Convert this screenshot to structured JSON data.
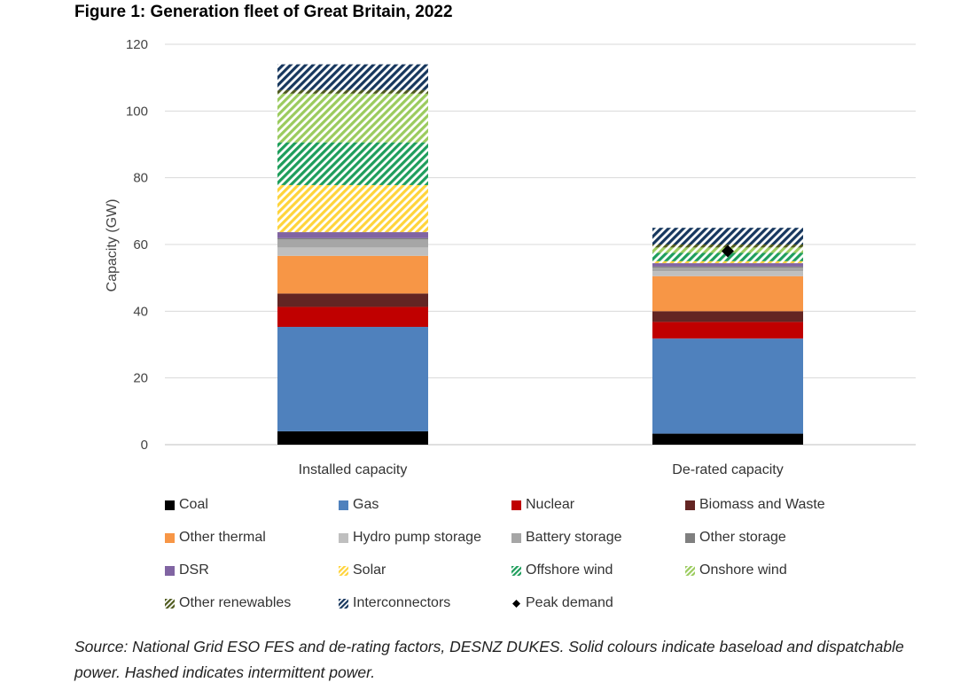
{
  "title": "Figure 1: Generation fleet of Great Britain, 2022",
  "source": "Source: National Grid ESO FES and de-rating factors, DESNZ DUKES. Solid colours indicate baseload and dispatchable power. Hashed indicates intermittent power.",
  "chart_data": {
    "type": "bar",
    "stacked": true,
    "categories": [
      "Installed capacity",
      "De-rated capacity"
    ],
    "ylabel": "Capacity (GW)",
    "xlabel": "",
    "ylim": [
      0,
      120
    ],
    "yticks": [
      0,
      20,
      40,
      60,
      80,
      100,
      120
    ],
    "grid": true,
    "legend_position": "bottom",
    "series": [
      {
        "name": "Coal",
        "values": [
          4,
          3.3
        ],
        "color": "#000000",
        "pattern": "solid"
      },
      {
        "name": "Gas",
        "values": [
          31.3,
          28.5
        ],
        "color": "#4f81bd",
        "pattern": "solid"
      },
      {
        "name": "Nuclear",
        "values": [
          6.0,
          5.0
        ],
        "color": "#c00000",
        "pattern": "solid"
      },
      {
        "name": "Biomass and Waste",
        "values": [
          4.0,
          3.2
        ],
        "color": "#632523",
        "pattern": "solid"
      },
      {
        "name": "Other thermal",
        "values": [
          11.3,
          10.5
        ],
        "color": "#f79646",
        "pattern": "solid"
      },
      {
        "name": "Hydro pump storage",
        "values": [
          2.5,
          1.5
        ],
        "color": "#bfbfbf",
        "pattern": "solid"
      },
      {
        "name": "Battery storage",
        "values": [
          2.4,
          1.1
        ],
        "color": "#a6a6a6",
        "pattern": "solid"
      },
      {
        "name": "Other storage",
        "values": [
          0.4,
          0.3
        ],
        "color": "#7f7f7f",
        "pattern": "solid"
      },
      {
        "name": "DSR",
        "values": [
          1.8,
          1.0
        ],
        "color": "#8064a2",
        "pattern": "solid"
      },
      {
        "name": "Solar",
        "values": [
          14.1,
          0.6
        ],
        "color": "#ffd43b",
        "pattern": "hatch"
      },
      {
        "name": "Offshore wind",
        "values": [
          12.8,
          2.5
        ],
        "color": "#1e9e5c",
        "pattern": "hatch"
      },
      {
        "name": "Onshore wind",
        "values": [
          14.6,
          1.6
        ],
        "color": "#9bcb5e",
        "pattern": "hatch"
      },
      {
        "name": "Other renewables",
        "values": [
          1.1,
          0.9
        ],
        "color": "#4f5a1e",
        "pattern": "hatch"
      },
      {
        "name": "Interconnectors",
        "values": [
          7.7,
          5.0
        ],
        "color": "#17375e",
        "pattern": "hatch"
      }
    ],
    "markers": [
      {
        "name": "Peak demand",
        "category": "De-rated capacity",
        "value": 58,
        "color": "#000000",
        "shape": "diamond"
      }
    ]
  }
}
